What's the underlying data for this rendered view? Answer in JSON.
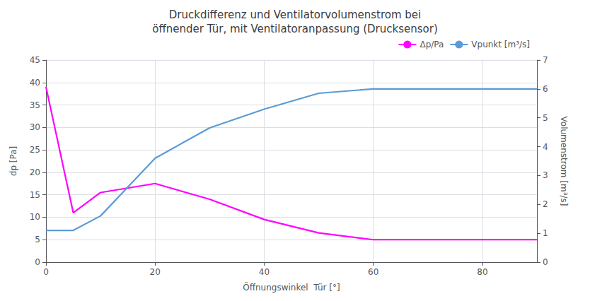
{
  "chart_data": {
    "type": "line",
    "title": "Druckdifferenz und Ventilatorvolumenstrom bei\nöffnender Tür, mit Ventilatoranpassung (Drucksensor)",
    "xlabel": "Öffnungswinkel  Tür [°]",
    "ylabel": "dp [Pa]",
    "y2label": "Volumenstrom [m³/s]",
    "x": [
      0,
      5,
      10,
      20,
      30,
      40,
      50,
      60,
      70,
      80,
      90
    ],
    "series": [
      {
        "name": "Δp/Pa",
        "color": "#FF00FF",
        "values": [
          39.0,
          11.0,
          15.5,
          17.5,
          14.0,
          9.5,
          6.5,
          5.0,
          5.0,
          5.0,
          5.0
        ]
      },
      {
        "name": "Vpunkt [m³/s]",
        "color": "#5B9BD5",
        "axis": "y2",
        "values": [
          1.1,
          1.1,
          1.6,
          3.6,
          4.65,
          5.3,
          5.85,
          6.0,
          6.0,
          6.0,
          6.0
        ]
      }
    ],
    "xlim": [
      0,
      90
    ],
    "xticks": [
      0,
      20,
      40,
      60,
      80
    ],
    "ylim": [
      0,
      45
    ],
    "yticks": [
      0,
      5,
      10,
      15,
      20,
      25,
      30,
      35,
      40,
      45
    ],
    "y2lim": [
      0,
      7
    ],
    "y2ticks": [
      0,
      1,
      2,
      3,
      4,
      5,
      6,
      7
    ],
    "grid": true,
    "legend": "upper right"
  }
}
